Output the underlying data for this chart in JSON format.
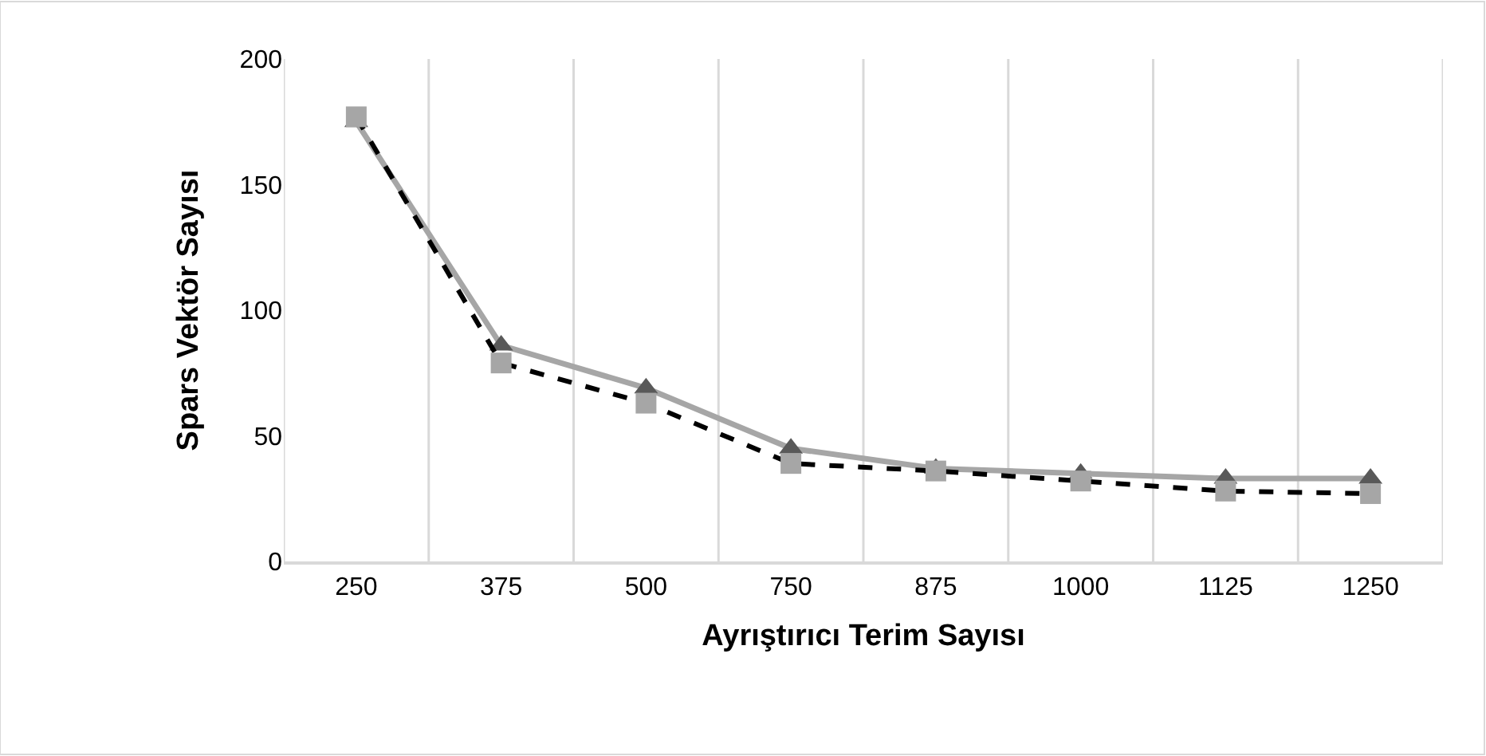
{
  "chart_data": {
    "type": "line",
    "xlabel": "Ayrıştırıcı Terim Sayısı",
    "ylabel": "Spars Vektör Sayısı",
    "categories": [
      "250",
      "375",
      "500",
      "750",
      "875",
      "1000",
      "1125",
      "1250"
    ],
    "series": [
      {
        "color": "#a6a6a6",
        "colors": [
          "#595959",
          "#595959",
          "#595959",
          "#595959",
          "#595959",
          "#595959",
          "#595959",
          "#595959"
        ],
        "marker": "triangle",
        "line_style": "solid",
        "values": [
          175,
          86,
          69,
          45,
          37,
          35,
          33,
          33
        ]
      },
      {
        "color": "#000000",
        "colors": [
          "#a6a6a6",
          "#a6a6a6",
          "#a6a6a6",
          "#a6a6a6",
          "#a6a6a6",
          "#a6a6a6",
          "#a6a6a6",
          "#a6a6a6"
        ],
        "marker": "square",
        "line_style": "dashed",
        "values": [
          177,
          79,
          63,
          39,
          36,
          32,
          28,
          27
        ]
      }
    ],
    "ylim": [
      0,
      200
    ],
    "yticks": [
      0,
      50,
      100,
      150,
      200
    ],
    "grid": "x"
  }
}
